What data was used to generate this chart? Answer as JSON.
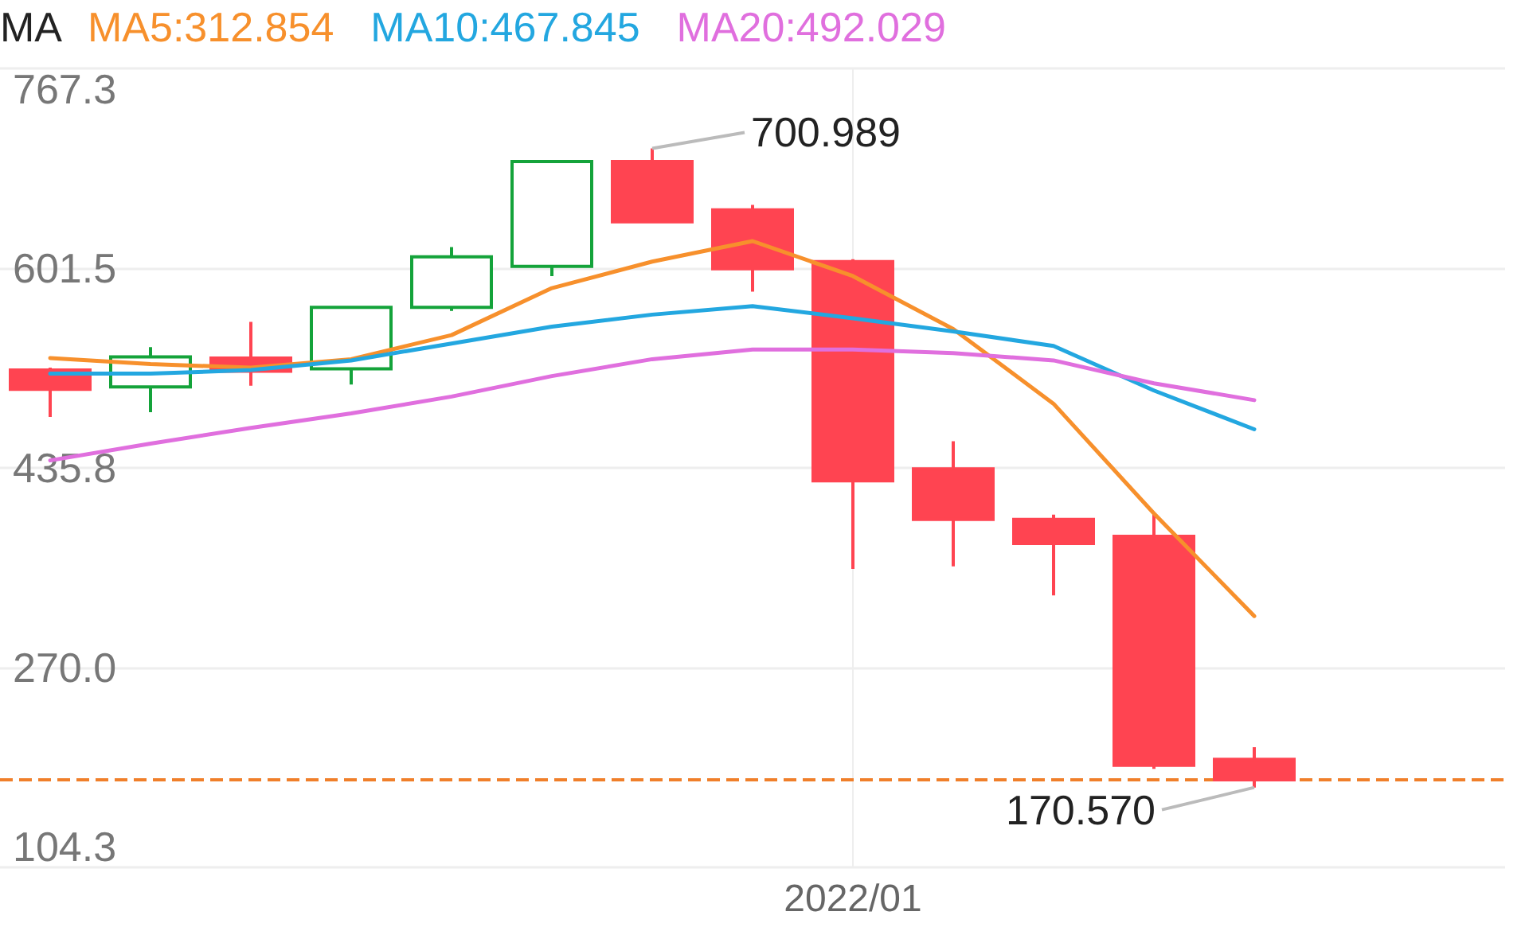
{
  "chart_data": {
    "type": "candlestick",
    "legend_title": "MA",
    "legend": "top left",
    "grid": true,
    "marker": "none",
    "categories": [
      null,
      null,
      null,
      null,
      null,
      null,
      null,
      null,
      "2022/01",
      null,
      null,
      null,
      null,
      null,
      null
    ],
    "ylim": [
      104.3,
      767.3
    ],
    "yticks": [
      104.3,
      {
        "value": 270,
        "label": "270.0"
      },
      435.8,
      601.5,
      767.3
    ],
    "series": [
      {
        "type": "candlestick",
        "ohlc": [
          [
            517,
            519,
            478,
            501
          ],
          [
            503,
            536,
            482,
            528
          ],
          [
            527,
            557,
            504,
            516
          ],
          [
            518,
            569,
            505,
            569
          ],
          [
            569,
            619,
            566,
            611
          ],
          [
            603,
            691,
            595,
            690
          ],
          [
            690,
            700.989,
            640,
            640
          ],
          [
            650,
            654,
            582,
            601
          ],
          [
            607,
            609,
            352,
            425
          ],
          [
            435,
            458,
            354,
            393
          ],
          [
            393,
            397,
            330,
            373
          ],
          [
            379,
            398,
            186,
            189
          ],
          [
            194,
            204,
            170.57,
            177
          ],
          null,
          null
        ],
        "colors": [
          "#ff4451",
          "#14a33a",
          "#ff4451",
          "#14a33a",
          "#14a33a",
          "#14a33a",
          "#ff4451",
          "#ff4451",
          "#ff4451",
          "#ff4451",
          "#ff4451",
          "#ff4451",
          "#ff4451",
          null,
          null
        ]
      },
      {
        "type": "line",
        "name": "MA5:312.854",
        "color": "#f7902c",
        "values": [
          527,
          522,
          519,
          526,
          546,
          585,
          607,
          624,
          595,
          551,
          489,
          398,
          312.854,
          null,
          null
        ]
      },
      {
        "type": "line",
        "name": "MA10:467.845",
        "color": "#23a7e0",
        "values": [
          514,
          514,
          517,
          525,
          539,
          553,
          563,
          570,
          560,
          549,
          537,
          500,
          467.845,
          null,
          null
        ]
      },
      {
        "type": "line",
        "name": "MA20:492.029",
        "color": "#e06fde",
        "values": [
          442,
          456,
          469,
          481,
          495,
          512,
          526,
          534,
          534,
          531,
          525,
          506,
          492.029,
          null,
          null
        ]
      }
    ],
    "ref_lines": [
      {
        "axis": "y",
        "value": 177,
        "color": "#f07f2a",
        "line_style": "dashed"
      }
    ],
    "annotations": [
      "700.989",
      "170.570"
    ]
  }
}
